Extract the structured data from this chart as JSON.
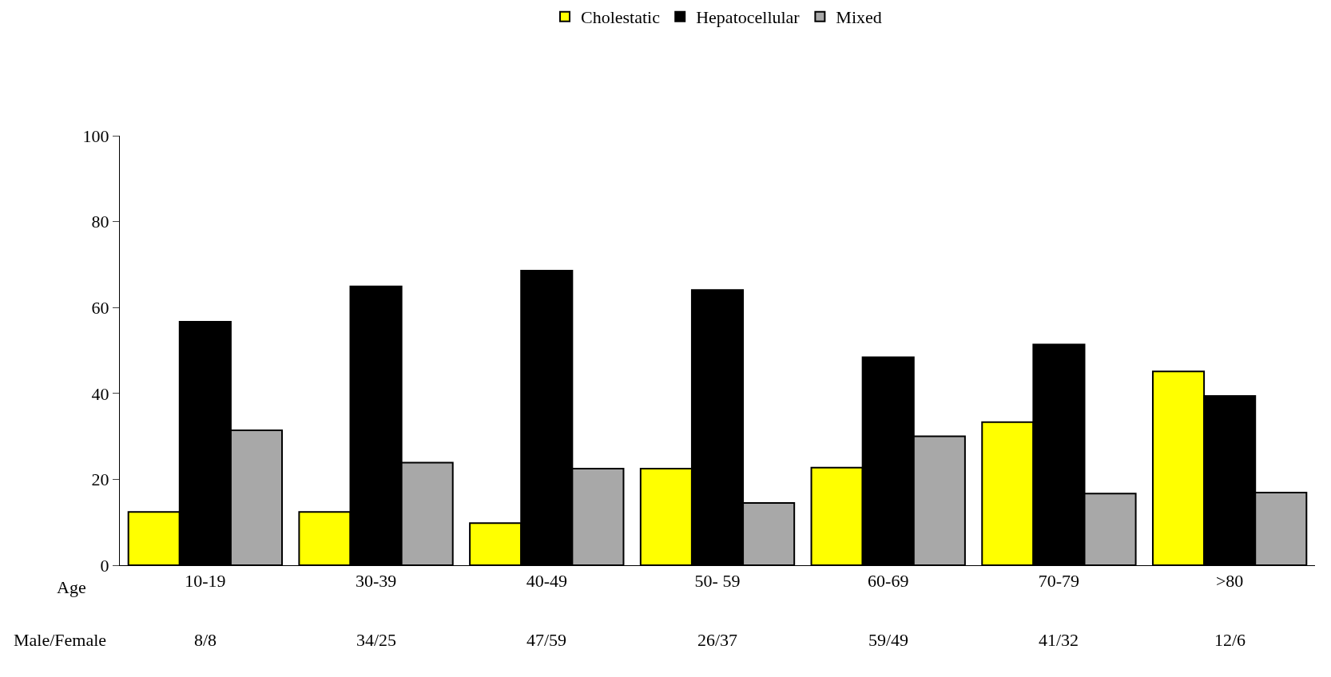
{
  "chart_data": {
    "type": "bar",
    "categories": [
      "10-19",
      "30-39",
      "40-49",
      "50- 59",
      "60-69",
      "70-79",
      ">80"
    ],
    "series": [
      {
        "name": "Cholestatic",
        "color": "#ffff00",
        "values": [
          12.4,
          12.4,
          9.8,
          22.5,
          22.7,
          33.3,
          45.1
        ]
      },
      {
        "name": "Hepatocellular",
        "color": "#000000",
        "values": [
          56.7,
          64.9,
          68.6,
          64.1,
          48.4,
          51.4,
          39.4
        ]
      },
      {
        "name": "Mixed",
        "color": "#a8a8a8",
        "values": [
          31.4,
          23.9,
          22.5,
          14.5,
          30,
          16.7,
          16.9
        ]
      }
    ],
    "xlabel": "Age",
    "annotations": [
      "Male/Female",
      "8/8",
      "34/25",
      "47/59",
      "26/37",
      "59/49",
      "41/32",
      "12/6"
    ],
    "ylim": [
      0,
      100
    ],
    "yticks": [
      0,
      20,
      40,
      60,
      80,
      100
    ],
    "legend": "top"
  }
}
